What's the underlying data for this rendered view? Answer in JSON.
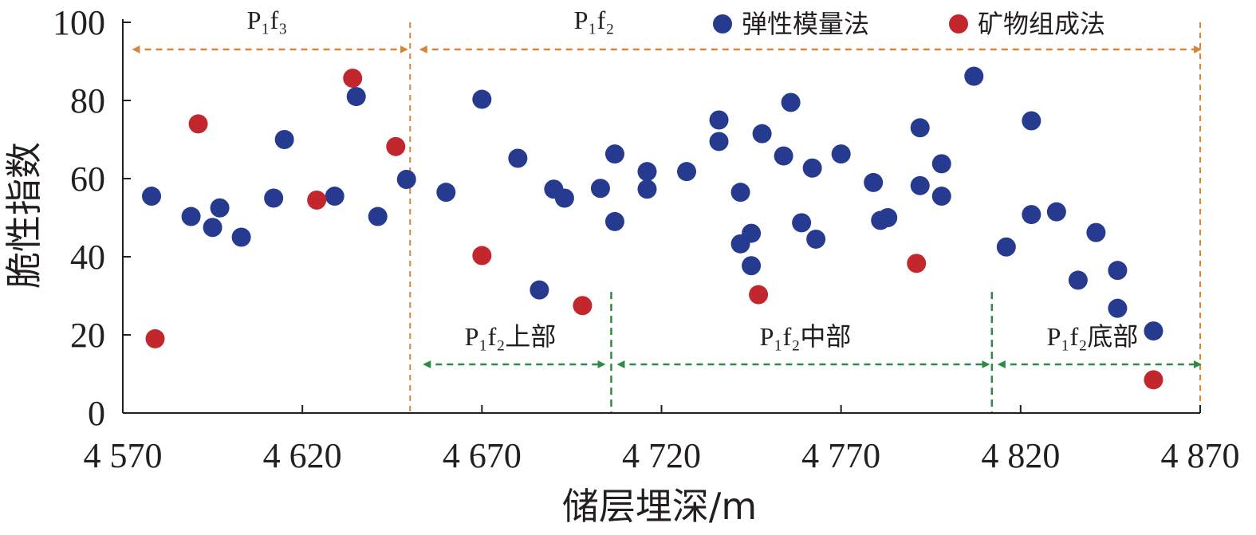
{
  "chart_data": {
    "type": "scatter",
    "xlabel": "储层埋深/m",
    "ylabel": "脆性指数",
    "xlim": [
      4570,
      4870
    ],
    "ylim": [
      0,
      100
    ],
    "x_ticks": [
      4570,
      4620,
      4670,
      4720,
      4770,
      4820,
      4870
    ],
    "x_tick_labels": [
      "4 570",
      "4 620",
      "4 670",
      "4 720",
      "4 770",
      "4 820",
      "4 870"
    ],
    "y_ticks": [
      0,
      20,
      40,
      60,
      80,
      100
    ],
    "y_tick_labels": [
      "0",
      "20",
      "40",
      "60",
      "80",
      "100"
    ],
    "legend_position": "top-right",
    "colors": {
      "blue": "#263a8f",
      "red": "#c1272d",
      "orange": "#d4873a",
      "green": "#2f8a45",
      "axis": "#231f20"
    },
    "series": [
      {
        "name": "弹性模量法",
        "color": "#263a8f",
        "points": [
          [
            4578,
            55.5
          ],
          [
            4589,
            50.3
          ],
          [
            4595,
            47.5
          ],
          [
            4597,
            52.5
          ],
          [
            4603,
            45
          ],
          [
            4612,
            55
          ],
          [
            4615,
            70
          ],
          [
            4629,
            55.5
          ],
          [
            4635,
            81
          ],
          [
            4641,
            50.3
          ],
          [
            4649,
            59.8
          ],
          [
            4660,
            56.5
          ],
          [
            4670,
            80.3
          ],
          [
            4680,
            65.2
          ],
          [
            4686,
            31.5
          ],
          [
            4690,
            57.3
          ],
          [
            4693,
            55
          ],
          [
            4703,
            57.5
          ],
          [
            4707,
            66.3
          ],
          [
            4707,
            49
          ],
          [
            4716,
            61.8
          ],
          [
            4716,
            57.3
          ],
          [
            4727,
            61.8
          ],
          [
            4736,
            75
          ],
          [
            4736,
            69.5
          ],
          [
            4742,
            56.5
          ],
          [
            4742,
            43.3
          ],
          [
            4745,
            37.7
          ],
          [
            4745,
            46
          ],
          [
            4748,
            71.5
          ],
          [
            4754,
            65.8
          ],
          [
            4756,
            79.5
          ],
          [
            4759,
            48.7
          ],
          [
            4762,
            62.7
          ],
          [
            4763,
            44.5
          ],
          [
            4770,
            66.3
          ],
          [
            4779,
            59
          ],
          [
            4781,
            49.3
          ],
          [
            4783,
            50
          ],
          [
            4792,
            73
          ],
          [
            4792,
            58.2
          ],
          [
            4798,
            63.8
          ],
          [
            4798,
            55.5
          ],
          [
            4807,
            86.2
          ],
          [
            4816,
            42.5
          ],
          [
            4823,
            74.8
          ],
          [
            4823,
            50.8
          ],
          [
            4830,
            51.5
          ],
          [
            4836,
            34
          ],
          [
            4841,
            46.2
          ],
          [
            4847,
            36.5
          ],
          [
            4847,
            26.8
          ],
          [
            4857,
            21
          ]
        ]
      },
      {
        "name": "矿物组成法",
        "color": "#c1272d",
        "points": [
          [
            4579,
            19
          ],
          [
            4591,
            74
          ],
          [
            4624,
            54.5
          ],
          [
            4634,
            85.7
          ],
          [
            4646,
            68.2
          ],
          [
            4670,
            40.3
          ],
          [
            4698,
            27.5
          ],
          [
            4747,
            30.3
          ],
          [
            4791,
            38.3
          ],
          [
            4857,
            8.5
          ]
        ]
      }
    ],
    "annotations": {
      "p1f3": {
        "text": "P₁f₃",
        "range": [
          4573,
          4649
        ]
      },
      "p1f2": {
        "text": "P₁f₂",
        "range": [
          4653,
          4870
        ]
      },
      "upper": {
        "text": "P₁f₂上部",
        "range": [
          4654,
          4704
        ]
      },
      "middle": {
        "text": "P₁f₂中部",
        "range": [
          4708,
          4811
        ]
      },
      "bottom": {
        "text": "P₁f₂底部",
        "range": [
          4814,
          4870
        ]
      },
      "boundaries": {
        "p1f3_p1f2": 4650,
        "upper_middle": 4706,
        "middle_bottom": 4812
      }
    }
  }
}
